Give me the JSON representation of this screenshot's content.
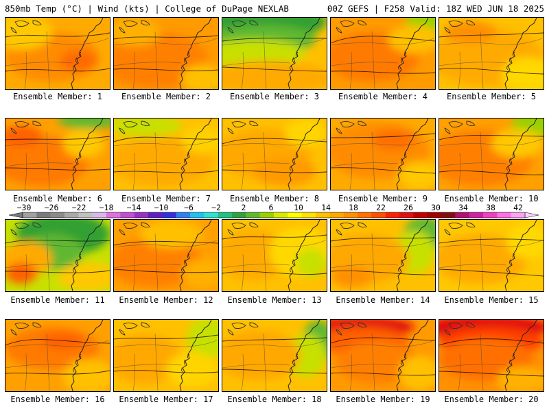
{
  "header": {
    "left": "850mb Temp (°C) | Wind (kts) | College of DuPage NEXLAB",
    "right": "00Z GEFS | F258 Valid: 18Z WED JUN 18 2025"
  },
  "label_prefix": "Ensemble Member: ",
  "members": [
    {
      "number": "1",
      "base": "#ffaa00",
      "blobs": [
        [
          "#ff8c00",
          0.45,
          0.55,
          0.45,
          0.35
        ],
        [
          "#ff6a00",
          0.7,
          0.6,
          0.18,
          0.15
        ],
        [
          "#ffc800",
          0.15,
          0.2,
          0.3,
          0.25
        ]
      ]
    },
    {
      "number": "2",
      "base": "#ff9a00",
      "blobs": [
        [
          "#ff8000",
          0.4,
          0.6,
          0.5,
          0.4
        ],
        [
          "#ffc000",
          0.85,
          0.85,
          0.2,
          0.2
        ],
        [
          "#ffb000",
          0.2,
          0.2,
          0.25,
          0.2
        ]
      ]
    },
    {
      "number": "3",
      "base": "#ffc000",
      "blobs": [
        [
          "#33a033",
          0.45,
          0.05,
          0.55,
          0.25
        ],
        [
          "#60b830",
          0.4,
          0.3,
          0.5,
          0.2
        ],
        [
          "#c8e000",
          0.3,
          0.5,
          0.5,
          0.2
        ],
        [
          "#ffaa00",
          0.45,
          0.85,
          0.6,
          0.25
        ]
      ]
    },
    {
      "number": "4",
      "base": "#ff9a00",
      "blobs": [
        [
          "#ff7a00",
          0.4,
          0.55,
          0.45,
          0.35
        ],
        [
          "#9ad000",
          0.92,
          0.05,
          0.2,
          0.2
        ],
        [
          "#ffc000",
          0.8,
          0.3,
          0.25,
          0.2
        ]
      ]
    },
    {
      "number": "5",
      "base": "#ffc000",
      "blobs": [
        [
          "#ffaa00",
          0.45,
          0.55,
          0.55,
          0.4
        ],
        [
          "#ff9000",
          0.3,
          0.2,
          0.25,
          0.15
        ],
        [
          "#ffd800",
          0.85,
          0.8,
          0.25,
          0.25
        ]
      ]
    },
    {
      "number": "6",
      "base": "#ffa000",
      "blobs": [
        [
          "#ff7a00",
          0.35,
          0.6,
          0.45,
          0.35
        ],
        [
          "#ff6000",
          0.15,
          0.25,
          0.2,
          0.15
        ],
        [
          "#60b830",
          0.8,
          0.02,
          0.3,
          0.12
        ],
        [
          "#ffc800",
          0.75,
          0.35,
          0.2,
          0.2
        ]
      ]
    },
    {
      "number": "7",
      "base": "#ffc000",
      "blobs": [
        [
          "#ffaa00",
          0.45,
          0.6,
          0.5,
          0.35
        ],
        [
          "#c8e000",
          0.3,
          0.1,
          0.35,
          0.15
        ],
        [
          "#ffd000",
          0.85,
          0.3,
          0.2,
          0.2
        ]
      ]
    },
    {
      "number": "8",
      "base": "#ffc000",
      "blobs": [
        [
          "#ffa800",
          0.4,
          0.5,
          0.45,
          0.35
        ],
        [
          "#ff9a00",
          0.6,
          0.75,
          0.3,
          0.2
        ],
        [
          "#ffd400",
          0.8,
          0.2,
          0.2,
          0.2
        ]
      ]
    },
    {
      "number": "9",
      "base": "#ffaa00",
      "blobs": [
        [
          "#ff8c00",
          0.45,
          0.45,
          0.5,
          0.4
        ],
        [
          "#ff7000",
          0.6,
          0.3,
          0.2,
          0.15
        ],
        [
          "#ffc800",
          0.85,
          0.8,
          0.2,
          0.2
        ]
      ]
    },
    {
      "number": "10",
      "base": "#ffa000",
      "blobs": [
        [
          "#ff8000",
          0.4,
          0.55,
          0.5,
          0.4
        ],
        [
          "#9ad000",
          0.9,
          0.08,
          0.2,
          0.18
        ],
        [
          "#ffc800",
          0.75,
          0.35,
          0.25,
          0.2
        ]
      ]
    },
    {
      "number": "11",
      "base": "#c8e000",
      "blobs": [
        [
          "#33a033",
          0.55,
          0.2,
          0.45,
          0.3
        ],
        [
          "#60b830",
          0.45,
          0.45,
          0.3,
          0.25
        ],
        [
          "#ffaa00",
          0.2,
          0.55,
          0.25,
          0.25
        ],
        [
          "#ff6000",
          0.15,
          0.75,
          0.15,
          0.15
        ],
        [
          "#ffc800",
          0.8,
          0.8,
          0.3,
          0.2
        ]
      ]
    },
    {
      "number": "12",
      "base": "#ffa000",
      "blobs": [
        [
          "#ff8000",
          0.4,
          0.6,
          0.45,
          0.35
        ],
        [
          "#ffc000",
          0.55,
          0.2,
          0.3,
          0.2
        ],
        [
          "#ffb000",
          0.85,
          0.75,
          0.2,
          0.2
        ]
      ]
    },
    {
      "number": "13",
      "base": "#ffc000",
      "blobs": [
        [
          "#ffaa00",
          0.3,
          0.5,
          0.35,
          0.35
        ],
        [
          "#ffd800",
          0.75,
          0.45,
          0.3,
          0.35
        ],
        [
          "#c8e000",
          0.85,
          0.6,
          0.15,
          0.2
        ]
      ]
    },
    {
      "number": "14",
      "base": "#ffc000",
      "blobs": [
        [
          "#60b830",
          0.9,
          0.2,
          0.2,
          0.25
        ],
        [
          "#c8e000",
          0.8,
          0.45,
          0.2,
          0.3
        ],
        [
          "#ffa800",
          0.35,
          0.55,
          0.4,
          0.35
        ],
        [
          "#ff9000",
          0.2,
          0.8,
          0.2,
          0.15
        ]
      ]
    },
    {
      "number": "15",
      "base": "#ffc800",
      "blobs": [
        [
          "#ffaa00",
          0.4,
          0.55,
          0.45,
          0.35
        ],
        [
          "#ffd800",
          0.85,
          0.3,
          0.2,
          0.25
        ]
      ]
    },
    {
      "number": "16",
      "base": "#ffa000",
      "blobs": [
        [
          "#ff7a00",
          0.45,
          0.4,
          0.45,
          0.3
        ],
        [
          "#ff6000",
          0.55,
          0.3,
          0.2,
          0.12
        ],
        [
          "#ffc000",
          0.8,
          0.8,
          0.25,
          0.25
        ]
      ]
    },
    {
      "number": "17",
      "base": "#ffc000",
      "blobs": [
        [
          "#ffa800",
          0.3,
          0.55,
          0.35,
          0.35
        ],
        [
          "#c8e000",
          0.9,
          0.25,
          0.2,
          0.3
        ],
        [
          "#ffd400",
          0.75,
          0.7,
          0.25,
          0.25
        ]
      ]
    },
    {
      "number": "18",
      "base": "#ffc000",
      "blobs": [
        [
          "#60b830",
          0.92,
          0.3,
          0.15,
          0.3
        ],
        [
          "#c8e000",
          0.8,
          0.5,
          0.2,
          0.3
        ],
        [
          "#ffa800",
          0.35,
          0.5,
          0.4,
          0.35
        ]
      ]
    },
    {
      "number": "19",
      "base": "#ff9a00",
      "blobs": [
        [
          "#e01010",
          0.3,
          0.1,
          0.5,
          0.15
        ],
        [
          "#ff6000",
          0.3,
          0.3,
          0.45,
          0.2
        ],
        [
          "#ff8000",
          0.45,
          0.6,
          0.4,
          0.3
        ],
        [
          "#ffc000",
          0.85,
          0.75,
          0.2,
          0.25
        ]
      ]
    },
    {
      "number": "20",
      "base": "#ff9000",
      "blobs": [
        [
          "#e01010",
          0.45,
          0.1,
          0.6,
          0.18
        ],
        [
          "#ff4000",
          0.5,
          0.3,
          0.5,
          0.2
        ],
        [
          "#ff7000",
          0.45,
          0.55,
          0.45,
          0.3
        ],
        [
          "#ffb000",
          0.8,
          0.85,
          0.25,
          0.2
        ]
      ]
    }
  ],
  "colorbar": {
    "labels": [
      "−30",
      "−26",
      "−22",
      "−18",
      "−14",
      "−10",
      "−6",
      "−2",
      "2",
      "6",
      "10",
      "14",
      "18",
      "22",
      "26",
      "30",
      "34",
      "38",
      "42"
    ],
    "colors": [
      "#a0a0a0",
      "#7a7a7a",
      "#8a8a8a",
      "#a8a8a8",
      "#c0c0c0",
      "#d8b8e8",
      "#e070e0",
      "#c050d0",
      "#9a30c0",
      "#6020c0",
      "#3030e0",
      "#3080f0",
      "#20c0f0",
      "#30e0d0",
      "#20c080",
      "#30a040",
      "#60b830",
      "#9ad000",
      "#d8e800",
      "#ffff00",
      "#ffe000",
      "#ffc000",
      "#ffa800",
      "#ff9000",
      "#ff7000",
      "#ff5000",
      "#ff2000",
      "#e01010",
      "#c00000",
      "#a00000",
      "#801010",
      "#b01070",
      "#d020a0",
      "#f040c0",
      "#ff70e0",
      "#ffa0f0"
    ],
    "left_arrow_color": "#7a7a7a",
    "right_arrow_color": "#ffd0ff"
  }
}
